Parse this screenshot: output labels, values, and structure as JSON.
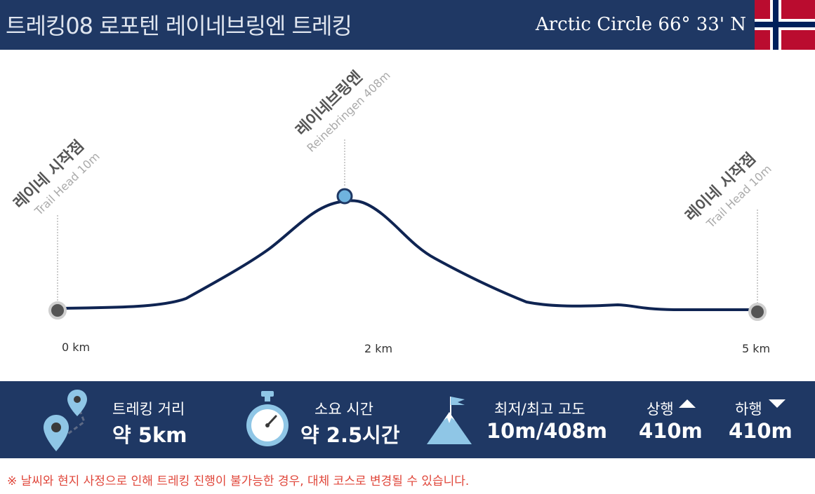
{
  "header": {
    "title": "트레킹08  로포텐 레이네브링엔 트레킹",
    "tagline": "Arctic Circle 66° 33' N",
    "flag_icon": "norway-flag-icon",
    "colors": {
      "navy": "#1f3864",
      "flag_red": "#ba0c2f",
      "flag_blue": "#00205b"
    }
  },
  "profile": {
    "points": [
      {
        "name": "레이네 시작점",
        "sub": "Trail Head 10m"
      },
      {
        "name": "레이네브링엔",
        "sub": "Reinebringen 408m"
      },
      {
        "name": "레이네 시작점",
        "sub": "Trail Head 10m"
      }
    ],
    "distance_labels": [
      "0 km",
      "2 km",
      "5 km"
    ],
    "line_color": "#0f2452",
    "marker_color": "#555555",
    "summit_marker_color": "#6fb3de"
  },
  "stats": [
    {
      "icon": "map-pins-icon",
      "label": "트레킹 거리",
      "value": "약 5km"
    },
    {
      "icon": "stopwatch-icon",
      "label": "소요 시간",
      "value": "약 2.5시간"
    },
    {
      "icon": "mountain-flag-icon",
      "label": "최저/최고 고도",
      "value": "10m/408m"
    },
    {
      "icon": "triangle-up-icon",
      "label": "상행",
      "value": "410m"
    },
    {
      "icon": "triangle-down-icon",
      "label": "하행",
      "value": "410m"
    }
  ],
  "note": "※ 날씨와 현지 사정으로 인해 트레킹 진행이 불가능한 경우, 대체 코스로 변경될 수 있습니다."
}
